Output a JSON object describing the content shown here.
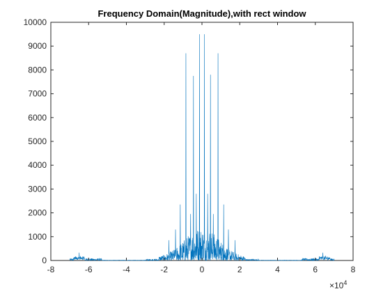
{
  "chart_data": {
    "type": "line",
    "title": "Frequency Domain(Magnitude),with rect window",
    "xlabel": "",
    "ylabel": "",
    "x_exponent_label": {
      "base": "×10",
      "exp": "4"
    },
    "xlim": [
      -8,
      8
    ],
    "ylim": [
      0,
      10000
    ],
    "xticks": [
      "-8",
      "-6",
      "-4",
      "-2",
      "0",
      "2",
      "4",
      "6",
      "8"
    ],
    "yticks": [
      "0",
      "1000",
      "2000",
      "3000",
      "4000",
      "5000",
      "6000",
      "7000",
      "8000",
      "9000",
      "10000"
    ],
    "grid": false,
    "series_color": "#0072BD",
    "axis_color": "#262626",
    "peaks": [
      {
        "x": -0.85,
        "y": 8700
      },
      {
        "x": 0.85,
        "y": 8700
      },
      {
        "x": -0.13,
        "y": 9500
      },
      {
        "x": 0.13,
        "y": 9500
      },
      {
        "x": -0.45,
        "y": 7750
      },
      {
        "x": 0.45,
        "y": 7800
      },
      {
        "x": -0.3,
        "y": 2800
      },
      {
        "x": 0.3,
        "y": 2800
      },
      {
        "x": -1.15,
        "y": 2350
      },
      {
        "x": 1.15,
        "y": 2350
      },
      {
        "x": -0.6,
        "y": 1950
      },
      {
        "x": 0.6,
        "y": 1950
      },
      {
        "x": -1.4,
        "y": 1300
      },
      {
        "x": 1.4,
        "y": 1300
      },
      {
        "x": -1.75,
        "y": 850
      },
      {
        "x": 1.75,
        "y": 850
      },
      {
        "x": -6.5,
        "y": 330
      },
      {
        "x": 6.4,
        "y": 330
      }
    ]
  }
}
